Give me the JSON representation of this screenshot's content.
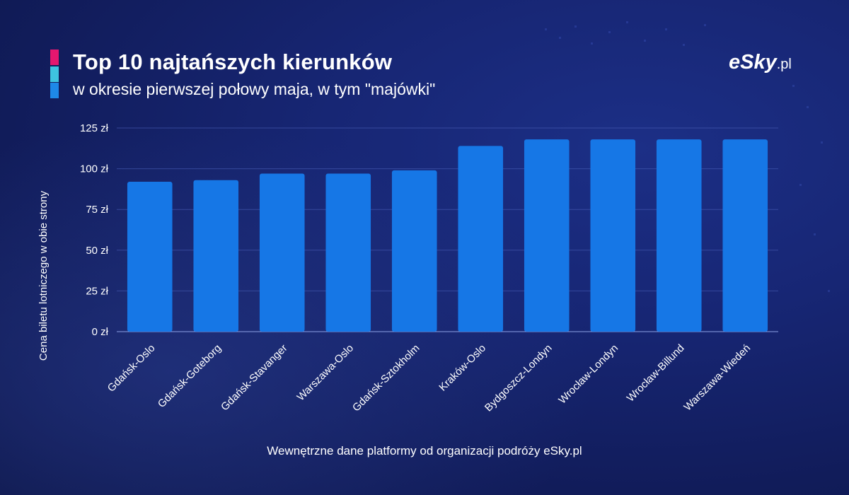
{
  "header": {
    "title": "Top 10 najtańszych kierunków",
    "subtitle": "w okresie pierwszej połowy maja, w tym \"majówki\""
  },
  "logo": {
    "brand": "eSky",
    "suffix": ".pl"
  },
  "footer": {
    "source": "Wewnętrzne dane platformy od organizacji podróży eSky.pl"
  },
  "colors": {
    "bar": "#1677e6",
    "accent_pink": "#e5176f",
    "accent_cyan": "#3ec3e0",
    "accent_blue": "#1e88e8"
  },
  "chart_data": {
    "type": "bar",
    "categories": [
      "Gdańsk-Oslo",
      "Gdańsk-Goteborg",
      "Gdańsk-Stavanger",
      "Warszawa-Oslo",
      "Gdańsk-Sztokholm",
      "Kraków-Oslo",
      "Bydgoszcz-Londyn",
      "Wrocław-Londyn",
      "Wrocław-Billund",
      "Warszawa-Wiedeń"
    ],
    "values": [
      92,
      93,
      97,
      97,
      99,
      114,
      118,
      118,
      118,
      118
    ],
    "title": "Top 10 najtańszych kierunków",
    "subtitle": "w okresie pierwszej połowy maja, w tym \"majówki\"",
    "xlabel": "",
    "ylabel": "Cena biletu lotniczego w obie strony",
    "ylim": [
      0,
      125
    ],
    "yticks": [
      0,
      25,
      50,
      75,
      100,
      125
    ],
    "ytick_labels": [
      "0 zł",
      "25 zł",
      "50 zł",
      "75 zł",
      "100 zł",
      "125 zł"
    ],
    "grid": true,
    "legend": "none"
  }
}
